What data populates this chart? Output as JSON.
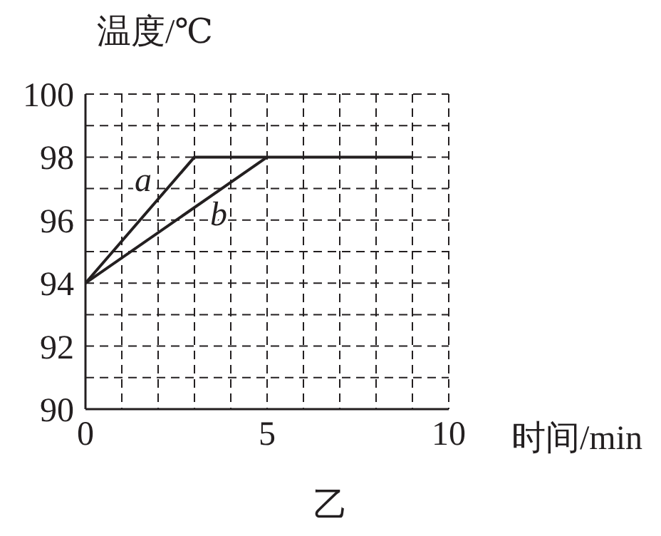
{
  "chart_data": {
    "type": "line",
    "xlabel": "时间/min",
    "ylabel": "温度/℃",
    "annotations": [
      "乙"
    ],
    "xlim": [
      0,
      10
    ],
    "ylim": [
      90,
      100
    ],
    "xticks": [
      0,
      {
        "value": 1,
        "label": null
      },
      {
        "value": 2,
        "label": null
      },
      {
        "value": 3,
        "label": null
      },
      {
        "value": 4,
        "label": null
      },
      5,
      {
        "value": 6,
        "label": null
      },
      {
        "value": 7,
        "label": null
      },
      {
        "value": 8,
        "label": null
      },
      {
        "value": 9,
        "label": null
      },
      10
    ],
    "yticks": [
      90,
      {
        "value": 91,
        "label": null
      },
      92,
      {
        "value": 93,
        "label": null
      },
      94,
      {
        "value": 95,
        "label": null
      },
      96,
      {
        "value": 97,
        "label": null
      },
      98,
      {
        "value": 99,
        "label": null
      },
      100
    ],
    "grid": true,
    "marker": "none",
    "line_style": "solid",
    "series": [
      {
        "name": "a",
        "color": "#231f20",
        "x": [
          0,
          3,
          9
        ],
        "values": [
          94,
          98,
          98
        ]
      },
      {
        "name": "b",
        "color": "#231f20",
        "x": [
          0,
          5
        ],
        "values": [
          94,
          98
        ]
      }
    ]
  }
}
